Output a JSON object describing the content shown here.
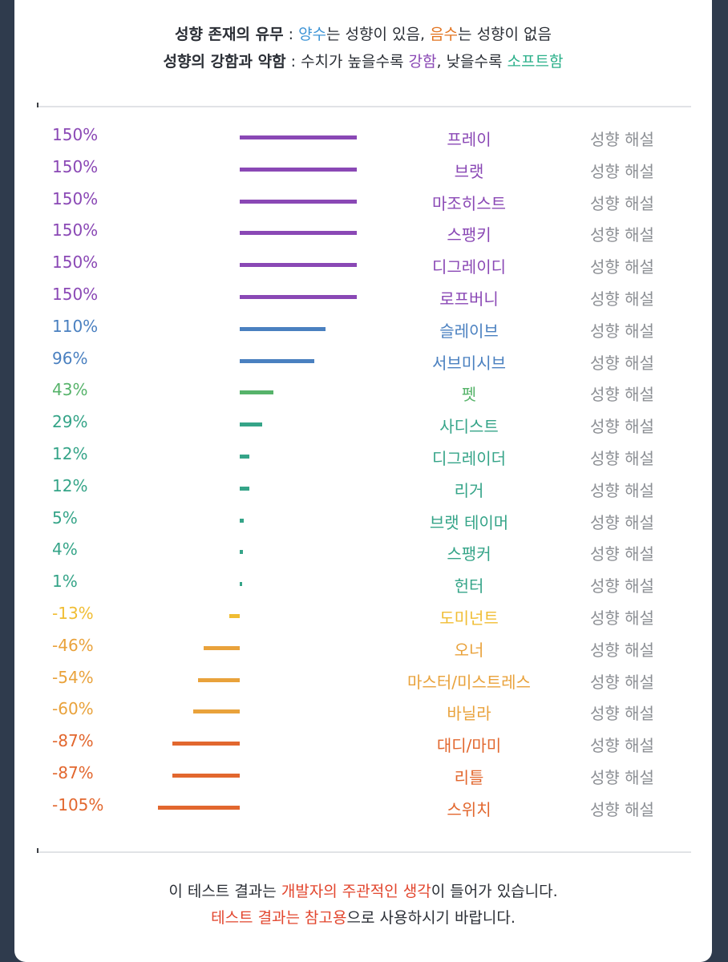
{
  "header": {
    "line1_label": "성향 존재의 유무",
    "line1_sep": " : ",
    "line1_pos": "양수",
    "line1_mid": "는 성향이 있음, ",
    "line1_neg": "음수",
    "line1_end": "는 성향이 없음",
    "line2_label": "성향의 강함과 약함",
    "line2_sep": " : ",
    "line2_mid": "수치가 높을수록 ",
    "line2_strong": "강함",
    "line2_mid2": ", 낮을수록 ",
    "line2_soft": "소프트함"
  },
  "desc_label": "성향 해설",
  "colors": {
    "purple": "#8a48b5",
    "blue": "#4a80c0",
    "green_light": "#56b36a",
    "green": "#35a488",
    "yellow": "#f0bd33",
    "orange": "#e9a23b",
    "red_orange": "#e2672e"
  },
  "chart_data": {
    "type": "bar",
    "categories": [
      "프레이",
      "브랫",
      "마조히스트",
      "스팽키",
      "디그레이디",
      "로프버니",
      "슬레이브",
      "서브미시브",
      "펫",
      "사디스트",
      "디그레이더",
      "리거",
      "브랫 테이머",
      "스팽커",
      "헌터",
      "도미넌트",
      "오너",
      "마스터/미스트레스",
      "바닐라",
      "대디/마미",
      "리틀",
      "스위치"
    ],
    "values": [
      150,
      150,
      150,
      150,
      150,
      150,
      110,
      96,
      43,
      29,
      12,
      12,
      5,
      4,
      1,
      -13,
      -46,
      -54,
      -60,
      -87,
      -87,
      -105
    ],
    "labels": [
      "150%",
      "150%",
      "150%",
      "150%",
      "150%",
      "150%",
      "110%",
      "96%",
      "43%",
      "29%",
      "12%",
      "12%",
      "5%",
      "4%",
      "1%",
      "-13%",
      "-46%",
      "-54%",
      "-60%",
      "-87%",
      "-87%",
      "-105%"
    ],
    "color_keys": [
      "purple",
      "purple",
      "purple",
      "purple",
      "purple",
      "purple",
      "blue",
      "blue",
      "green_light",
      "green",
      "green",
      "green",
      "green",
      "green",
      "green",
      "yellow",
      "orange",
      "orange",
      "orange",
      "red_orange",
      "red_orange",
      "red_orange"
    ],
    "unit": "%"
  },
  "footer": {
    "line1_a": "이 테스트 결과는 ",
    "line1_b": "개발자의 주관적인 생각",
    "line1_c": "이 들어가 있습니다.",
    "line2_a": "테스트 결과는 참고용",
    "line2_b": "으로 사용하시기 바랍니다."
  }
}
